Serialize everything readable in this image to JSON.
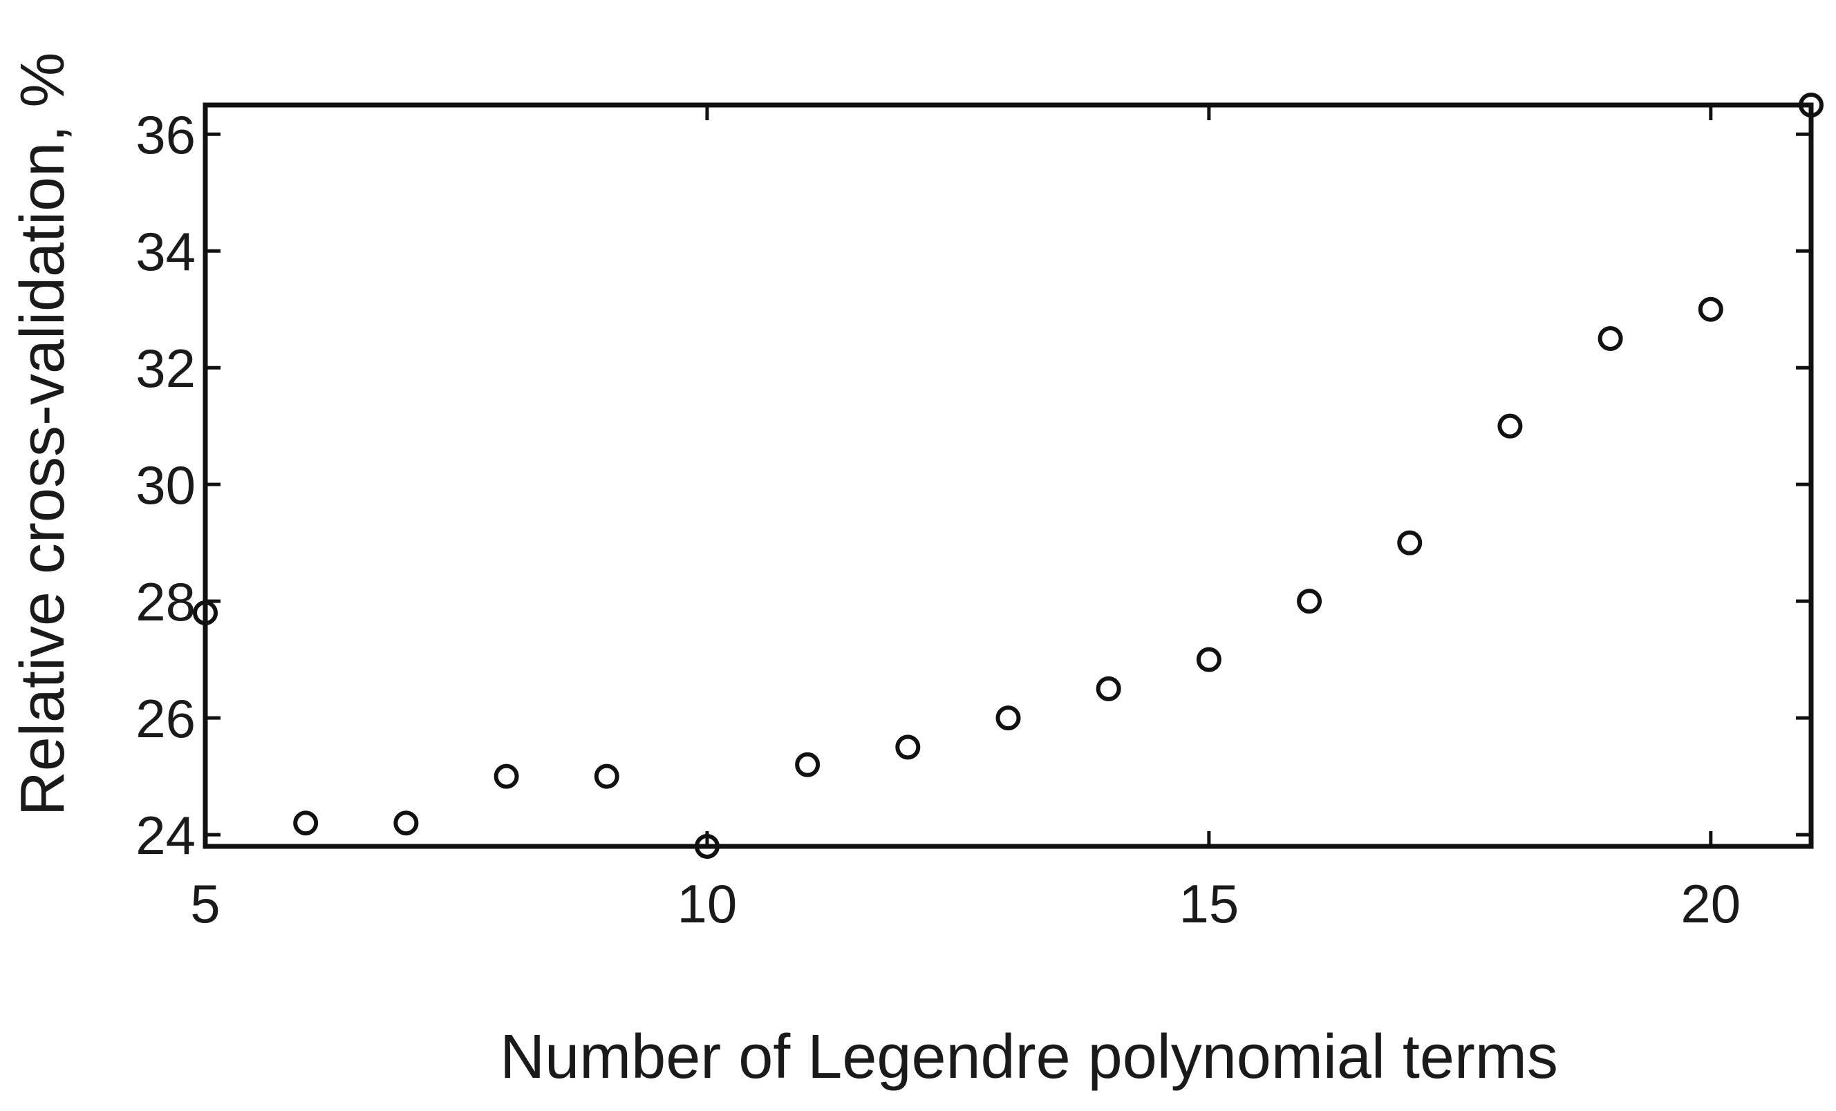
{
  "chart_data": {
    "type": "scatter",
    "title": "",
    "xlabel": "Number of Legendre polynomial terms",
    "ylabel": "Relative cross-validation, %",
    "xlim": [
      5,
      21
    ],
    "ylim": [
      23.8,
      36.5
    ],
    "xticks": [
      5,
      10,
      15,
      20
    ],
    "yticks": [
      24,
      26,
      28,
      30,
      32,
      34,
      36
    ],
    "grid": false,
    "marker": "open-circle",
    "marker_color": "#111111",
    "series": [
      {
        "x": [
          5,
          6,
          7,
          8,
          9,
          10,
          11,
          12,
          13,
          14,
          15,
          16,
          17,
          18,
          19,
          20,
          21
        ],
        "y": [
          27.8,
          24.2,
          24.2,
          25.0,
          25.0,
          23.8,
          25.2,
          25.5,
          26.0,
          26.5,
          27.0,
          28.0,
          29.0,
          31.0,
          32.5,
          33.0,
          36.5
        ]
      }
    ]
  }
}
